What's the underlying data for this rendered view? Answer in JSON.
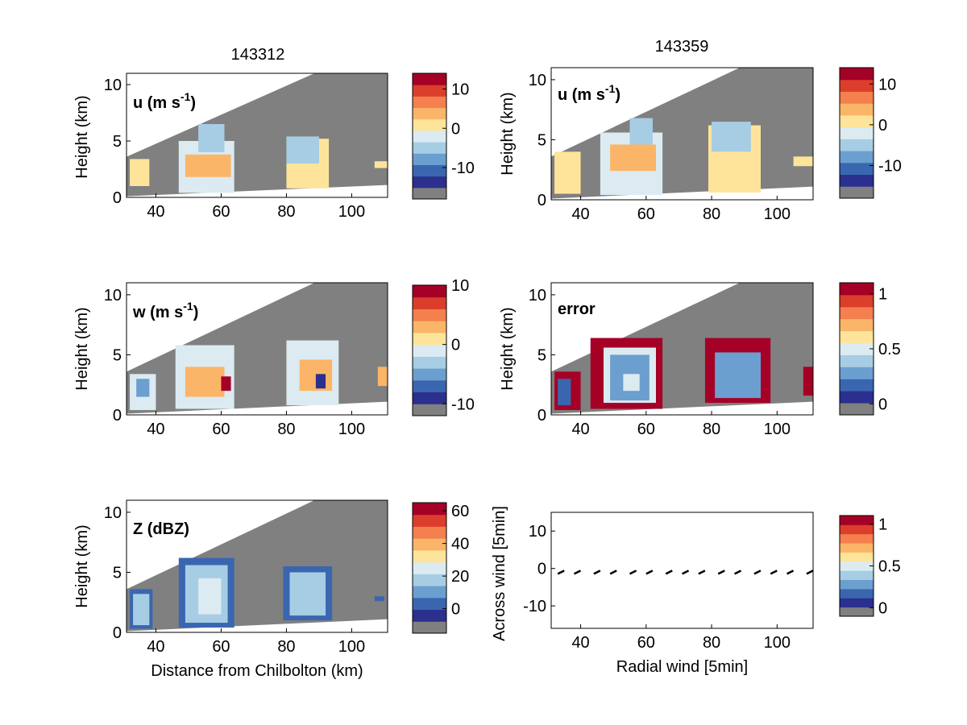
{
  "palette": [
    "#2b2f8e",
    "#3a66b0",
    "#6b9fcf",
    "#a6cde3",
    "#dcebf2",
    "#fde49a",
    "#fbb568",
    "#f3804e",
    "#dc3e2c",
    "#a50026"
  ],
  "gray": "#808080",
  "titles": {
    "left": "143312",
    "right": "143359"
  },
  "chart_data": [
    {
      "type": "heatmap",
      "inline_label": {
        "pre": "u (m s",
        "sup": "-1",
        "post": ")"
      },
      "xlabel": "",
      "ylabel": "Height (km)",
      "xlim": [
        31,
        111
      ],
      "ylim": [
        0,
        11
      ],
      "xticks": [
        "40",
        "60",
        "80",
        "100"
      ],
      "yticks": [
        "0",
        "5",
        "10"
      ],
      "colorbar": {
        "ticks": [
          "10",
          "0",
          "-10"
        ],
        "tick_values": [
          10,
          0,
          -10
        ],
        "range": [
          -18,
          14
        ]
      },
      "cells": [
        {
          "x": [
            32,
            38
          ],
          "y": [
            1.0,
            3.4
          ],
          "v": 2
        },
        {
          "x": [
            47,
            64
          ],
          "y": [
            0.4,
            5.0
          ],
          "v": -3
        },
        {
          "x": [
            49,
            63
          ],
          "y": [
            1.8,
            3.8
          ],
          "v": 3
        },
        {
          "x": [
            53,
            61
          ],
          "y": [
            4.0,
            6.5
          ],
          "v": -6
        },
        {
          "x": [
            80,
            93
          ],
          "y": [
            0.8,
            5.2
          ],
          "v": 2
        },
        {
          "x": [
            80,
            90
          ],
          "y": [
            3.0,
            5.4
          ],
          "v": -6
        },
        {
          "x": [
            107,
            111
          ],
          "y": [
            2.6,
            3.2
          ],
          "v": 2
        }
      ]
    },
    {
      "type": "heatmap",
      "inline_label": {
        "pre": "u (m s",
        "sup": "-1",
        "post": ")"
      },
      "xlabel": "",
      "ylabel": "Height (km)",
      "xlim": [
        31,
        111
      ],
      "ylim": [
        0,
        11
      ],
      "xticks": [
        "40",
        "60",
        "80",
        "100"
      ],
      "yticks": [
        "0",
        "5",
        "10"
      ],
      "colorbar": {
        "ticks": [
          "10",
          "0",
          "-10"
        ],
        "tick_values": [
          10,
          0,
          -10
        ],
        "range": [
          -18,
          14
        ]
      },
      "cells": [
        {
          "x": [
            32,
            40
          ],
          "y": [
            0.5,
            4.0
          ],
          "v": 2
        },
        {
          "x": [
            46,
            65
          ],
          "y": [
            0.4,
            5.6
          ],
          "v": -3
        },
        {
          "x": [
            49,
            63
          ],
          "y": [
            2.4,
            4.6
          ],
          "v": 3
        },
        {
          "x": [
            55,
            62
          ],
          "y": [
            4.6,
            6.8
          ],
          "v": -6
        },
        {
          "x": [
            79,
            95
          ],
          "y": [
            0.6,
            6.2
          ],
          "v": 2
        },
        {
          "x": [
            80,
            92
          ],
          "y": [
            4.0,
            6.5
          ],
          "v": -6
        },
        {
          "x": [
            105,
            111
          ],
          "y": [
            2.8,
            3.6
          ],
          "v": 2
        }
      ]
    },
    {
      "type": "heatmap",
      "inline_label": {
        "pre": "w (m s",
        "sup": "-1",
        "post": ")"
      },
      "xlabel": "",
      "ylabel": "Height (km)",
      "xlim": [
        31,
        111
      ],
      "ylim": [
        0,
        11
      ],
      "xticks": [
        "40",
        "60",
        "80",
        "100"
      ],
      "yticks": [
        "0",
        "5",
        "10"
      ],
      "colorbar": {
        "ticks": [
          "10",
          "0",
          "-10"
        ],
        "tick_values": [
          10,
          0,
          -10
        ],
        "range": [
          -12,
          10
        ]
      },
      "cells": [
        {
          "x": [
            32,
            40
          ],
          "y": [
            0.4,
            3.4
          ],
          "v": -1
        },
        {
          "x": [
            34,
            38
          ],
          "y": [
            1.5,
            3.0
          ],
          "v": -5
        },
        {
          "x": [
            46,
            64
          ],
          "y": [
            0.5,
            5.8
          ],
          "v": -1
        },
        {
          "x": [
            49,
            61
          ],
          "y": [
            1.5,
            4.0
          ],
          "v": 2
        },
        {
          "x": [
            60,
            63
          ],
          "y": [
            2.0,
            3.2
          ],
          "v": 8
        },
        {
          "x": [
            80,
            96
          ],
          "y": [
            0.8,
            6.2
          ],
          "v": -1
        },
        {
          "x": [
            84,
            94
          ],
          "y": [
            2.0,
            4.6
          ],
          "v": 2
        },
        {
          "x": [
            89,
            92
          ],
          "y": [
            2.2,
            3.4
          ],
          "v": -9
        },
        {
          "x": [
            108,
            111
          ],
          "y": [
            2.4,
            4.0
          ],
          "v": 2
        }
      ]
    },
    {
      "type": "heatmap",
      "inline_label": {
        "pre": "error",
        "sup": "",
        "post": ""
      },
      "xlabel": "",
      "ylabel": "Height (km)",
      "xlim": [
        31,
        111
      ],
      "ylim": [
        0,
        11
      ],
      "xticks": [
        "40",
        "60",
        "80",
        "100"
      ],
      "yticks": [
        "0",
        "5",
        "10"
      ],
      "colorbar": {
        "ticks": [
          "1",
          "0.5",
          "0"
        ],
        "tick_values": [
          1,
          0.5,
          0
        ],
        "range": [
          -0.1,
          1.1
        ]
      },
      "cells": [
        {
          "x": [
            32,
            40
          ],
          "y": [
            0.4,
            3.6
          ],
          "v": 1.0
        },
        {
          "x": [
            33,
            37
          ],
          "y": [
            0.8,
            3.0
          ],
          "v": 0.2
        },
        {
          "x": [
            43,
            65
          ],
          "y": [
            0.5,
            6.4
          ],
          "v": 1.0
        },
        {
          "x": [
            47,
            63
          ],
          "y": [
            1.0,
            5.6
          ],
          "v": 0.55
        },
        {
          "x": [
            49,
            61
          ],
          "y": [
            1.2,
            5.0
          ],
          "v": 0.25
        },
        {
          "x": [
            53,
            58
          ],
          "y": [
            2.0,
            3.4
          ],
          "v": 0.45
        },
        {
          "x": [
            78,
            98
          ],
          "y": [
            1.0,
            6.4
          ],
          "v": 1.0
        },
        {
          "x": [
            81,
            95
          ],
          "y": [
            1.4,
            5.2
          ],
          "v": 0.25
        },
        {
          "x": [
            108,
            111
          ],
          "y": [
            1.6,
            4.0
          ],
          "v": 1.0
        }
      ]
    },
    {
      "type": "heatmap",
      "inline_label": {
        "pre": "Z (dBZ)",
        "sup": "",
        "post": ""
      },
      "xlabel": "Distance from Chilbolton (km)",
      "ylabel": "Height (km)",
      "xlim": [
        31,
        111
      ],
      "ylim": [
        0,
        11
      ],
      "xticks": [
        "40",
        "60",
        "80",
        "100"
      ],
      "yticks": [
        "0",
        "5",
        "10"
      ],
      "colorbar": {
        "ticks": [
          "60",
          "40",
          "20",
          "0"
        ],
        "tick_values": [
          60,
          40,
          20,
          0
        ],
        "range": [
          -15,
          65
        ]
      },
      "cells": [
        {
          "x": [
            32,
            39
          ],
          "y": [
            0.3,
            3.6
          ],
          "v": 2
        },
        {
          "x": [
            33,
            38
          ],
          "y": [
            0.6,
            3.2
          ],
          "v": 18
        },
        {
          "x": [
            47,
            64
          ],
          "y": [
            0.4,
            6.2
          ],
          "v": 2
        },
        {
          "x": [
            49,
            62
          ],
          "y": [
            0.8,
            5.6
          ],
          "v": 18
        },
        {
          "x": [
            53,
            60
          ],
          "y": [
            1.5,
            4.5
          ],
          "v": 22
        },
        {
          "x": [
            79,
            94
          ],
          "y": [
            1.0,
            5.5
          ],
          "v": 2
        },
        {
          "x": [
            81,
            92
          ],
          "y": [
            1.4,
            5.0
          ],
          "v": 18
        },
        {
          "x": [
            107,
            110
          ],
          "y": [
            2.6,
            3.0
          ],
          "v": 2
        }
      ]
    },
    {
      "type": "scatter",
      "inline_label": {
        "pre": "",
        "sup": "",
        "post": ""
      },
      "xlabel": "Radial wind [5min]",
      "ylabel": "Across wind [5min]",
      "xlim": [
        31,
        111
      ],
      "ylim": [
        -16,
        15
      ],
      "xticks": [
        "40",
        "60",
        "80",
        "100"
      ],
      "yticks": [
        "10",
        "0",
        "-10"
      ],
      "xtick_values": [
        40,
        60,
        80,
        100
      ],
      "ytick_values": [
        10,
        0,
        -10
      ],
      "colorbar": {
        "ticks": [
          "1",
          "0.5",
          "0"
        ],
        "tick_values": [
          1,
          0.5,
          0
        ],
        "range": [
          -0.1,
          1.1
        ]
      },
      "x": [
        34,
        39,
        45,
        50,
        56,
        61,
        67,
        72,
        77,
        83,
        88,
        94,
        99,
        104,
        110
      ],
      "y": [
        -1,
        -1,
        -1,
        -1,
        -1,
        -1,
        -1,
        -1,
        -1,
        -1,
        -1,
        -1,
        -1,
        -1,
        -1
      ]
    }
  ]
}
